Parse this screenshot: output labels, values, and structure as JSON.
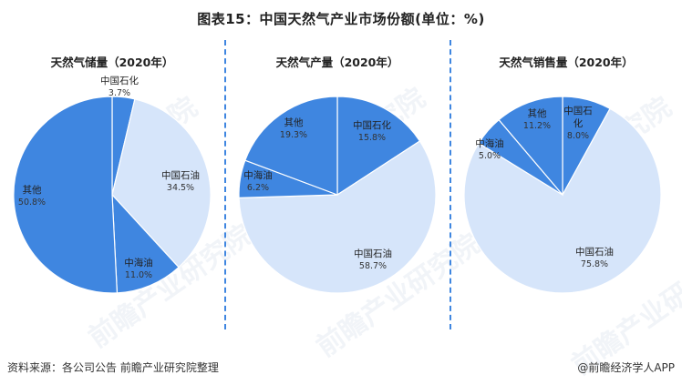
{
  "header": {
    "title": "图表15：中国天然气产业市场份额(单位：%)"
  },
  "colors": {
    "dark_blue": "#3F86E0",
    "light_blue": "#D6E5FA",
    "divider": "#3F86E0"
  },
  "panels": [
    {
      "title": "天然气储量（2020年）",
      "slices": [
        {
          "name": "中国石化",
          "value": "3.7%"
        },
        {
          "name": "中国石油",
          "value": "34.5%"
        },
        {
          "name": "中海油",
          "value": "11.0%"
        },
        {
          "name": "其他",
          "value": "50.8%"
        }
      ]
    },
    {
      "title": "天然气产量（2020年）",
      "slices": [
        {
          "name": "中国石化",
          "value": "15.8%"
        },
        {
          "name": "中国石油",
          "value": "58.7%"
        },
        {
          "name": "中海油",
          "value": "6.2%"
        },
        {
          "name": "其他",
          "value": "19.3%"
        }
      ]
    },
    {
      "title": "天然气销售量（2020年）",
      "slices": [
        {
          "name": "中国石化",
          "value": "8.0%"
        },
        {
          "name": "中国石油",
          "value": "75.8%"
        },
        {
          "name": "中海油",
          "value": "5.0%"
        },
        {
          "name": "其他",
          "value": "11.2%"
        }
      ]
    }
  ],
  "footer": {
    "source": "资料来源：各公司公告 前瞻产业研究院整理",
    "credit": "@前瞻经济学人APP"
  },
  "watermark": "前瞻产业研究院",
  "chart_data": [
    {
      "type": "pie",
      "title": "天然气储量（2020年）",
      "categories": [
        "中国石化",
        "中国石油",
        "中海油",
        "其他"
      ],
      "values": [
        3.7,
        34.5,
        11.0,
        50.8
      ],
      "colors": [
        "#3F86E0",
        "#D6E5FA",
        "#3F86E0",
        "#3F86E0"
      ],
      "unit": "%"
    },
    {
      "type": "pie",
      "title": "天然气产量（2020年）",
      "categories": [
        "中国石化",
        "中国石油",
        "中海油",
        "其他"
      ],
      "values": [
        15.8,
        58.7,
        6.2,
        19.3
      ],
      "colors": [
        "#3F86E0",
        "#D6E5FA",
        "#3F86E0",
        "#3F86E0"
      ],
      "unit": "%"
    },
    {
      "type": "pie",
      "title": "天然气销售量（2020年）",
      "categories": [
        "中国石化",
        "中国石油",
        "中海油",
        "其他"
      ],
      "values": [
        8.0,
        75.8,
        5.0,
        11.2
      ],
      "colors": [
        "#3F86E0",
        "#D6E5FA",
        "#3F86E0",
        "#3F86E0"
      ],
      "unit": "%"
    }
  ]
}
